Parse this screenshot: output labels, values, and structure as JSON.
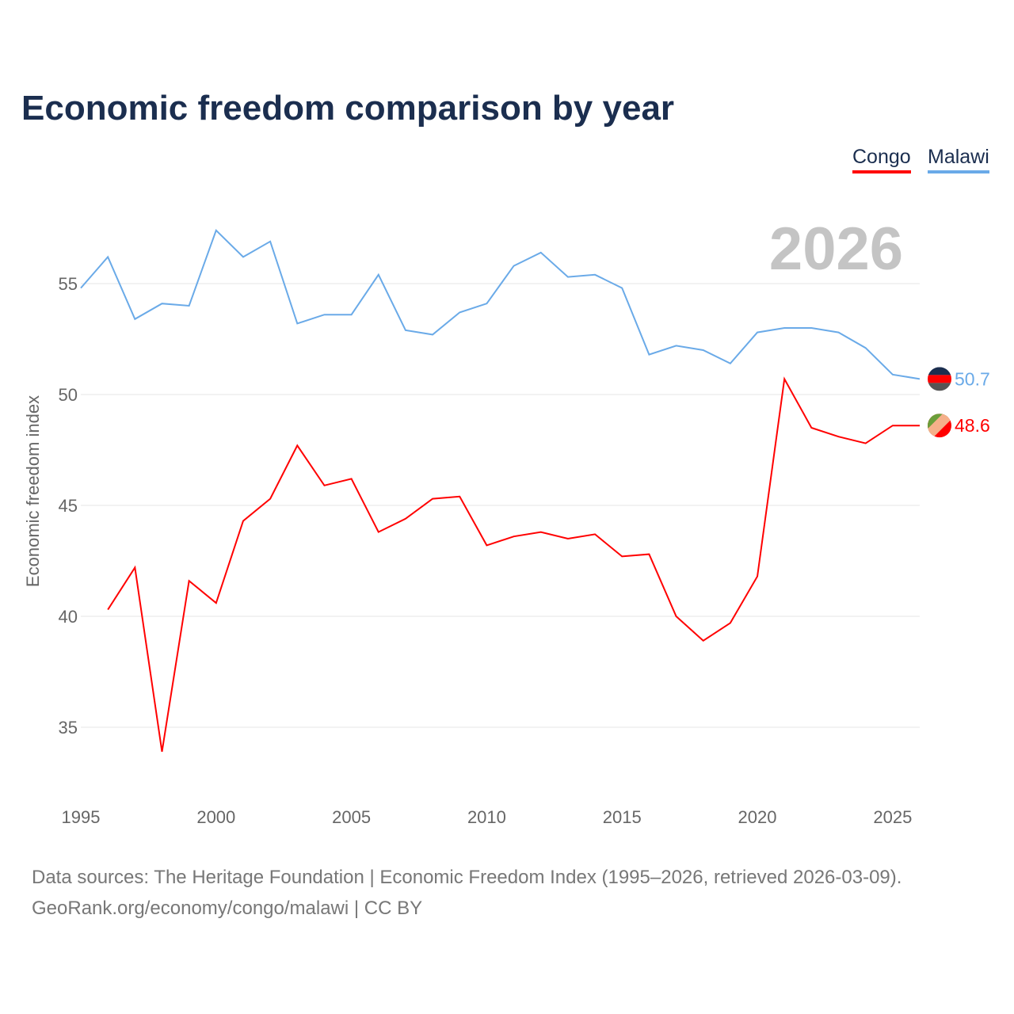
{
  "chart_data": {
    "type": "line",
    "title": "Economic freedom comparison by year",
    "xlabel": "",
    "ylabel": "Economic freedom index",
    "xlim": [
      1995,
      2026
    ],
    "ylim": [
      32.5,
      59
    ],
    "yticks": [
      35,
      40,
      45,
      50,
      55
    ],
    "xticks": [
      1995,
      2000,
      2005,
      2010,
      2015,
      2020,
      2025
    ],
    "grid": true,
    "legend_placement": "top-right",
    "year_watermark": "2026",
    "x": [
      1995,
      1996,
      1997,
      1998,
      1999,
      2000,
      2001,
      2002,
      2003,
      2004,
      2005,
      2006,
      2007,
      2008,
      2009,
      2010,
      2011,
      2012,
      2013,
      2014,
      2015,
      2016,
      2017,
      2018,
      2019,
      2020,
      2021,
      2022,
      2023,
      2024,
      2025,
      2026
    ],
    "series": [
      {
        "name": "Congo",
        "color": "#ff0000",
        "end_label": "48.6",
        "values": [
          null,
          40.3,
          42.2,
          33.9,
          41.6,
          40.6,
          44.3,
          45.3,
          47.7,
          45.9,
          46.2,
          43.8,
          44.4,
          45.3,
          45.4,
          43.2,
          43.6,
          43.8,
          43.5,
          43.7,
          42.7,
          42.8,
          40.0,
          38.9,
          39.7,
          41.8,
          50.7,
          48.5,
          48.1,
          47.8,
          48.6,
          48.6
        ]
      },
      {
        "name": "Malawi",
        "color": "#6aaae8",
        "end_label": "50.7",
        "values": [
          54.8,
          56.2,
          53.4,
          54.1,
          54.0,
          57.4,
          56.2,
          56.9,
          53.2,
          53.6,
          53.6,
          55.4,
          52.9,
          52.7,
          53.7,
          54.1,
          55.8,
          56.4,
          55.3,
          55.4,
          54.8,
          51.8,
          52.2,
          52.0,
          51.4,
          52.8,
          53.0,
          53.0,
          52.8,
          52.1,
          50.9,
          50.7
        ]
      }
    ]
  },
  "source_line1": "Data sources: The Heritage Foundation | Economic Freedom Index (1995–2026, retrieved 2026-03-09).",
  "source_line2": "GeoRank.org/economy/congo/malawi | CC BY"
}
